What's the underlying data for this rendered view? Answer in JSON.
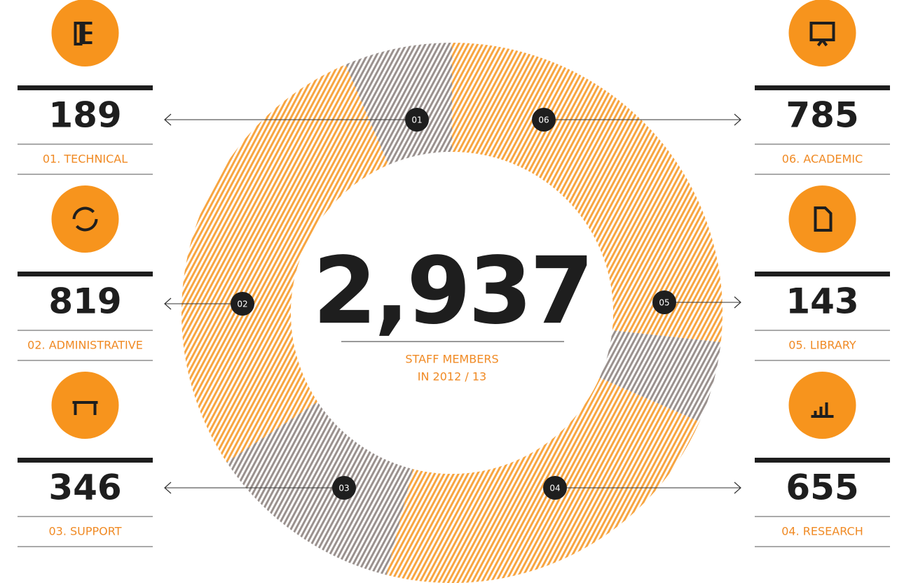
{
  "chart_data": {
    "type": "donut",
    "codes": [
      "01",
      "02",
      "03",
      "04",
      "05",
      "06"
    ],
    "categories": [
      "01. TECHNICAL",
      "02. ADMINISTRATIVE",
      "03. SUPPORT",
      "04. RESEARCH",
      "05. LIBRARY",
      "06. ACADEMIC"
    ],
    "values": [
      189,
      819,
      346,
      655,
      143,
      785
    ],
    "colors": [
      "#9a918e",
      "#f7a541",
      "#9a918e",
      "#f7a541",
      "#9a918e",
      "#f7a541"
    ],
    "center_label": "2,937",
    "subtitle": [
      "STAFF MEMBERS",
      "IN 2012 / 13"
    ]
  }
}
